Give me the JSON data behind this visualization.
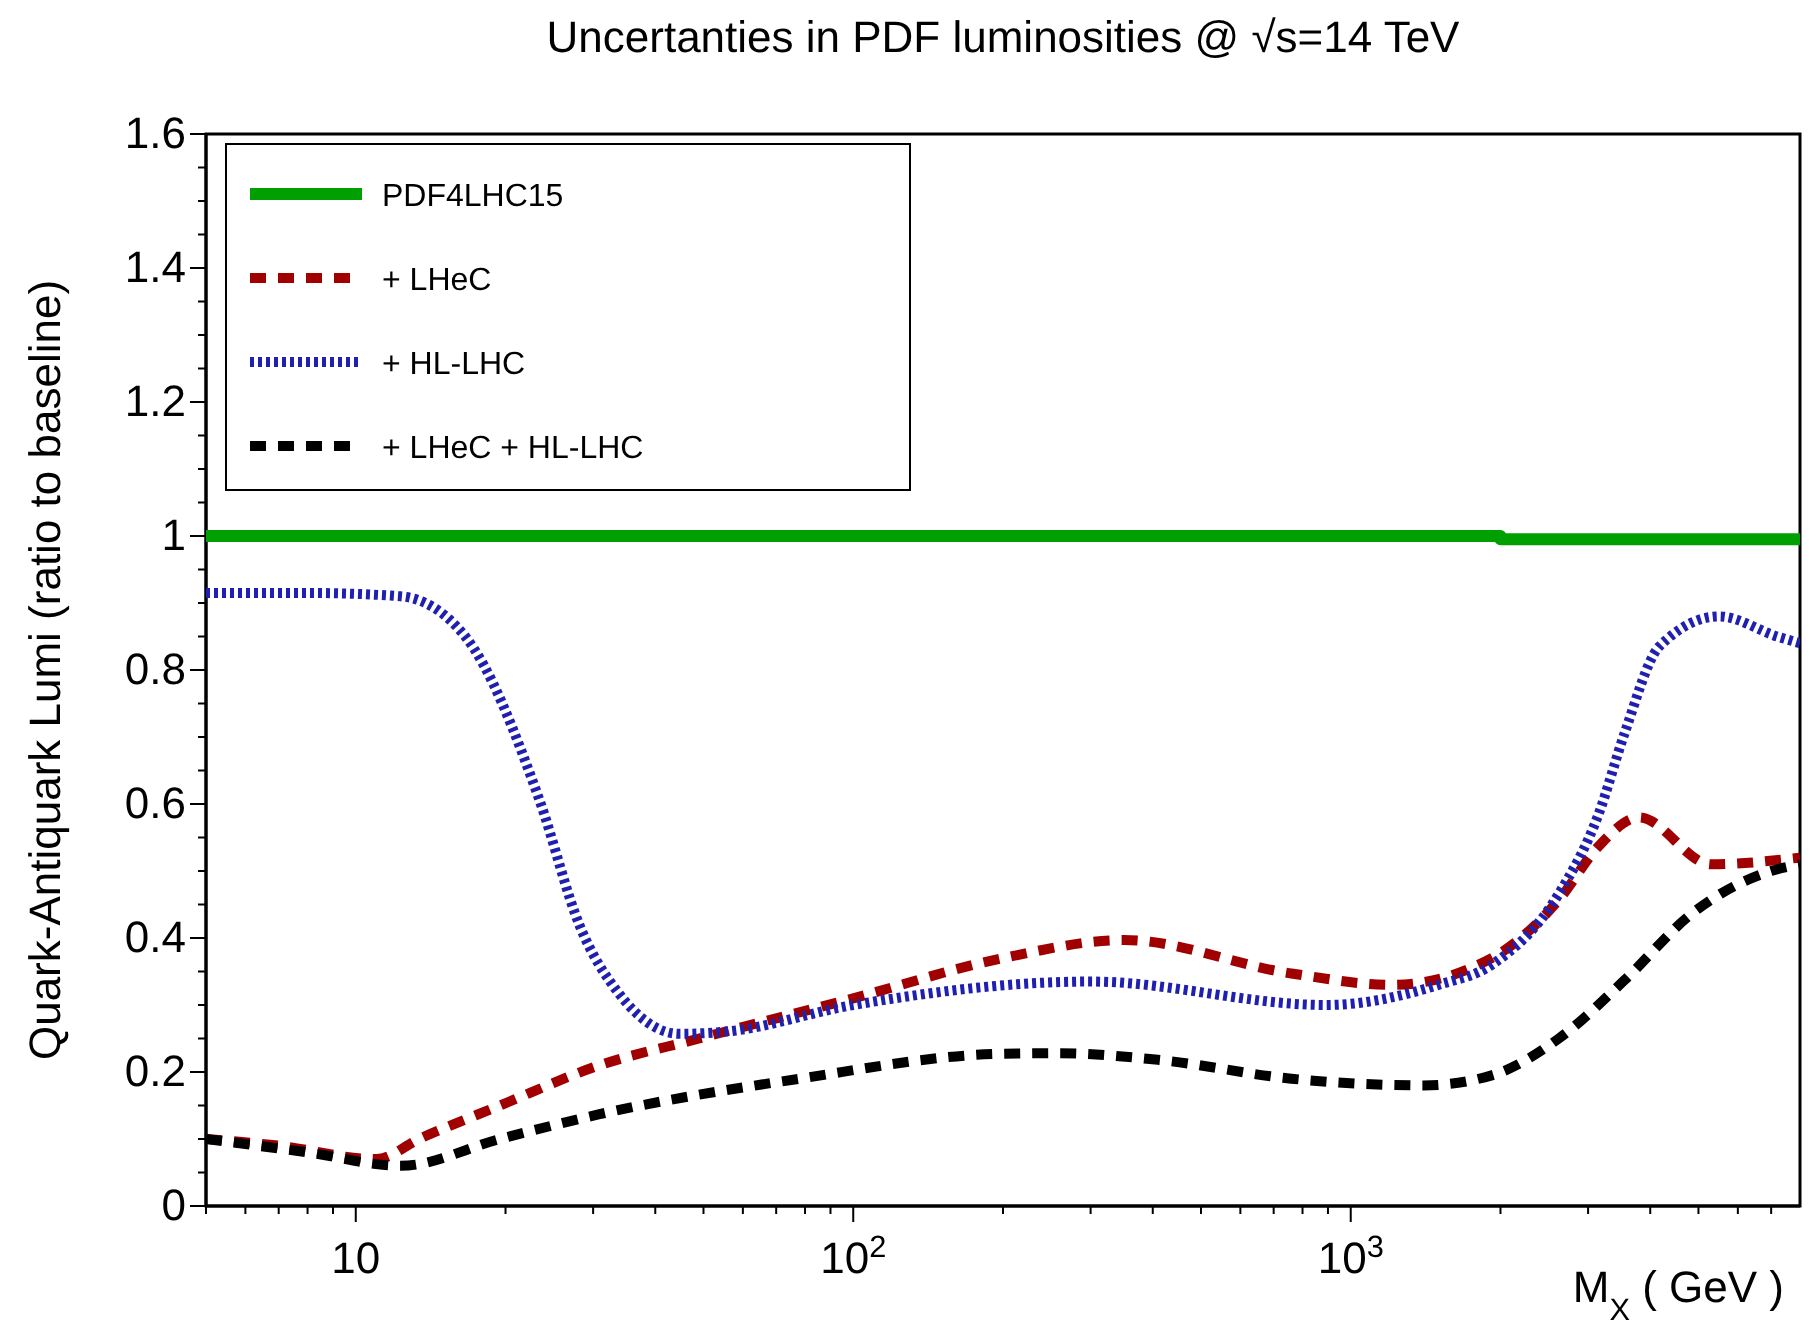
{
  "chart_data": {
    "type": "line",
    "title": "Uncertanties in PDF luminosities @ √s=14 TeV",
    "xlabel": "M$_{X}$ ( GeV )",
    "ylabel": "Quark-Antiquark Lumi (ratio to baseline)",
    "log": "x",
    "xlim": [
      5,
      8000
    ],
    "xticks": [
      {
        "value": 5,
        "label": null
      },
      {
        "value": 6,
        "label": null
      },
      {
        "value": 7,
        "label": null
      },
      {
        "value": 8,
        "label": null
      },
      {
        "value": 9,
        "label": null
      },
      10,
      {
        "value": 20,
        "label": null
      },
      {
        "value": 30,
        "label": null
      },
      {
        "value": 40,
        "label": null
      },
      {
        "value": 50,
        "label": null
      },
      {
        "value": 60,
        "label": null
      },
      {
        "value": 70,
        "label": null
      },
      {
        "value": 80,
        "label": null
      },
      {
        "value": 90,
        "label": null
      },
      {
        "value": 100,
        "label": "10$^{2}$"
      },
      {
        "value": 200,
        "label": null
      },
      {
        "value": 300,
        "label": null
      },
      {
        "value": 400,
        "label": null
      },
      {
        "value": 500,
        "label": null
      },
      {
        "value": 600,
        "label": null
      },
      {
        "value": 700,
        "label": null
      },
      {
        "value": 800,
        "label": null
      },
      {
        "value": 900,
        "label": null
      },
      {
        "value": 1000,
        "label": "10$^{3}$"
      },
      {
        "value": 2000,
        "label": null
      },
      {
        "value": 3000,
        "label": null
      },
      {
        "value": 4000,
        "label": null
      },
      {
        "value": 5000,
        "label": null
      },
      {
        "value": 6000,
        "label": null
      },
      {
        "value": 7000,
        "label": null
      }
    ],
    "ylim": [
      0,
      1.6
    ],
    "yticks": [
      0,
      {
        "value": 0.05,
        "label": null
      },
      {
        "value": 0.1,
        "label": null
      },
      {
        "value": 0.15,
        "label": null
      },
      0.2,
      {
        "value": 0.25,
        "label": null
      },
      {
        "value": 0.3,
        "label": null
      },
      {
        "value": 0.35,
        "label": null
      },
      0.4,
      {
        "value": 0.45,
        "label": null
      },
      {
        "value": 0.5,
        "label": null
      },
      {
        "value": 0.55,
        "label": null
      },
      0.6,
      {
        "value": 0.65,
        "label": null
      },
      {
        "value": 0.7,
        "label": null
      },
      {
        "value": 0.75,
        "label": null
      },
      0.8,
      {
        "value": 0.85,
        "label": null
      },
      {
        "value": 0.9,
        "label": null
      },
      {
        "value": 0.95,
        "label": null
      },
      1,
      {
        "value": 1.05,
        "label": null
      },
      {
        "value": 1.1,
        "label": null
      },
      {
        "value": 1.15,
        "label": null
      },
      1.2,
      {
        "value": 1.25,
        "label": null
      },
      {
        "value": 1.3,
        "label": null
      },
      {
        "value": 1.35,
        "label": null
      },
      1.4,
      {
        "value": 1.45,
        "label": null
      },
      {
        "value": 1.5,
        "label": null
      },
      {
        "value": 1.55,
        "label": null
      },
      1.6
    ],
    "grid": false,
    "legend": "top left",
    "marker": "none",
    "series": [
      {
        "name": "PDF4LHC15",
        "color": "#00a000",
        "line_style": "solid",
        "x": [
          5,
          2000,
          2000,
          8000
        ],
        "values": [
          1,
          1,
          0.995,
          0.995
        ]
      },
      {
        "name": "+ LHeC",
        "color": "#a00000",
        "line_style": "dashed",
        "x": [
          5,
          7,
          11,
          13.4,
          19.5,
          30.9,
          49,
          100,
          200,
          350,
          760,
          1210,
          1920,
          2620,
          3150,
          3800,
          5300,
          8000
        ],
        "values": [
          0.1,
          0.09,
          0.07,
          0.1,
          0.15,
          0.21,
          0.25,
          0.31,
          0.37,
          0.397,
          0.347,
          0.33,
          0.37,
          0.457,
          0.537,
          0.58,
          0.51,
          0.52
        ]
      },
      {
        "name": "+ HL-LHC",
        "color": "#2020b0",
        "line_style": "dotted",
        "x": [
          5,
          8,
          12.3,
          16.6,
          23.4,
          28.2,
          33.9,
          44.7,
          55,
          100,
          300,
          890,
          1500,
          1920,
          2620,
          3150,
          3550,
          4170,
          5500,
          7200,
          8000
        ],
        "values": [
          0.915,
          0.915,
          0.91,
          0.85,
          0.606,
          0.418,
          0.316,
          0.257,
          0.26,
          0.3,
          0.335,
          0.3,
          0.33,
          0.36,
          0.466,
          0.585,
          0.705,
          0.835,
          0.88,
          0.85,
          0.84
        ]
      },
      {
        "name": "+ LHeC + HL-LHC",
        "color": "#000000",
        "line_style": "dashed",
        "x": [
          5,
          8,
          12.3,
          19.5,
          30.9,
          78,
          196,
          258,
          412,
          760,
          1400,
          1920,
          2620,
          3550,
          4860,
          7000,
          8000
        ],
        "values": [
          0.1,
          0.08,
          0.06,
          0.1,
          0.137,
          0.19,
          0.227,
          0.228,
          0.218,
          0.19,
          0.18,
          0.195,
          0.25,
          0.337,
          0.437,
          0.5,
          0.51
        ]
      }
    ]
  }
}
